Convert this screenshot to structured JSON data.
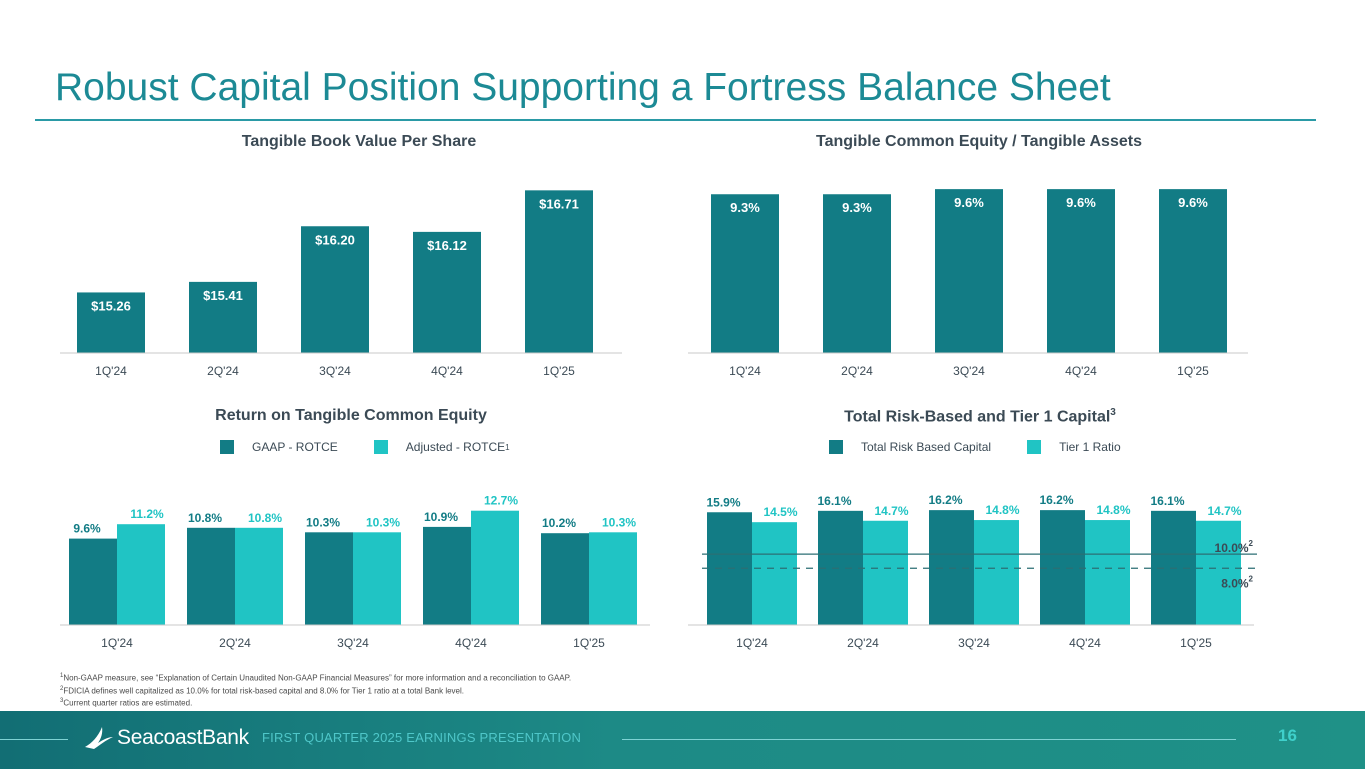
{
  "page": {
    "title": "Robust Capital Position Supporting a Fortress Balance Sheet",
    "footnotes": [
      {
        "marker": "1",
        "text": "Non-GAAP measure, see “Explanation of Certain Unaudited Non-GAAP Financial Measures” for more information and a reconciliation to GAAP."
      },
      {
        "marker": "2",
        "text": "FDICIA defines well capitalized as 10.0% for total risk-based capital and 8.0% for Tier 1 ratio at a total Bank level."
      },
      {
        "marker": "3",
        "text": "Current quarter ratios are estimated."
      }
    ],
    "footer": {
      "brand": "SeacoastBank",
      "tagline": "FIRST QUARTER 2025 EARNINGS PRESENTATION",
      "page_number": "16"
    }
  },
  "colors": {
    "dark_teal": "#127c85",
    "light_teal": "#20c4c4",
    "title": "#1c8a95",
    "text": "#3b4a55"
  },
  "chart_data": [
    {
      "id": "tbvps",
      "type": "bar",
      "title": "Tangible Book Value Per Share",
      "categories": [
        "1Q'24",
        "2Q'24",
        "3Q'24",
        "4Q'24",
        "1Q'25"
      ],
      "values": [
        15.26,
        15.41,
        16.2,
        16.12,
        16.71
      ],
      "labels": [
        "$15.26",
        "$15.41",
        "$16.20",
        "$16.12",
        "$16.71"
      ],
      "ylim": [
        14.4,
        16.8
      ]
    },
    {
      "id": "tce",
      "type": "bar",
      "title": "Tangible Common Equity / Tangible Assets",
      "categories": [
        "1Q'24",
        "2Q'24",
        "3Q'24",
        "4Q'24",
        "1Q'25"
      ],
      "values": [
        9.3,
        9.3,
        9.6,
        9.6,
        9.6
      ],
      "labels": [
        "9.3%",
        "9.3%",
        "9.6%",
        "9.6%",
        "9.6%"
      ],
      "ylim": [
        0,
        9.9
      ]
    },
    {
      "id": "rotce",
      "type": "bar",
      "title": "Return on Tangible Common Equity",
      "categories": [
        "1Q'24",
        "2Q'24",
        "3Q'24",
        "4Q'24",
        "1Q'25"
      ],
      "series": [
        {
          "name": "GAAP - ROTCE",
          "values": [
            9.6,
            10.8,
            10.3,
            10.9,
            10.2
          ],
          "labels": [
            "9.6%",
            "10.8%",
            "10.3%",
            "10.9%",
            "10.2%"
          ]
        },
        {
          "name": "Adjusted - ROTCE",
          "name_sup": "1",
          "values": [
            11.2,
            10.8,
            10.3,
            12.7,
            10.3
          ],
          "labels": [
            "11.2%",
            "10.8%",
            "10.3%",
            "12.7%",
            "10.3%"
          ]
        }
      ],
      "ylim": [
        0,
        13.0
      ]
    },
    {
      "id": "capital",
      "type": "bar",
      "title": "Total Risk-Based and Tier 1 Capital",
      "title_sup": "3",
      "categories": [
        "1Q'24",
        "2Q'24",
        "3Q'24",
        "4Q'24",
        "1Q'25"
      ],
      "series": [
        {
          "name": "Total Risk Based Capital",
          "values": [
            15.9,
            16.1,
            16.2,
            16.2,
            16.1
          ],
          "labels": [
            "15.9%",
            "16.1%",
            "16.2%",
            "16.2%",
            "16.1%"
          ]
        },
        {
          "name": "Tier 1 Ratio",
          "values": [
            14.5,
            14.7,
            14.8,
            14.8,
            14.7
          ],
          "labels": [
            "14.5%",
            "14.7%",
            "14.8%",
            "14.8%",
            "14.7%"
          ]
        }
      ],
      "reference_lines": [
        {
          "value": 10.0,
          "label": "10.0%",
          "sup": "2",
          "style": "solid"
        },
        {
          "value": 8.0,
          "label": "8.0%",
          "sup": "2",
          "style": "dashed"
        }
      ],
      "ylim": [
        0,
        16.5
      ]
    }
  ]
}
